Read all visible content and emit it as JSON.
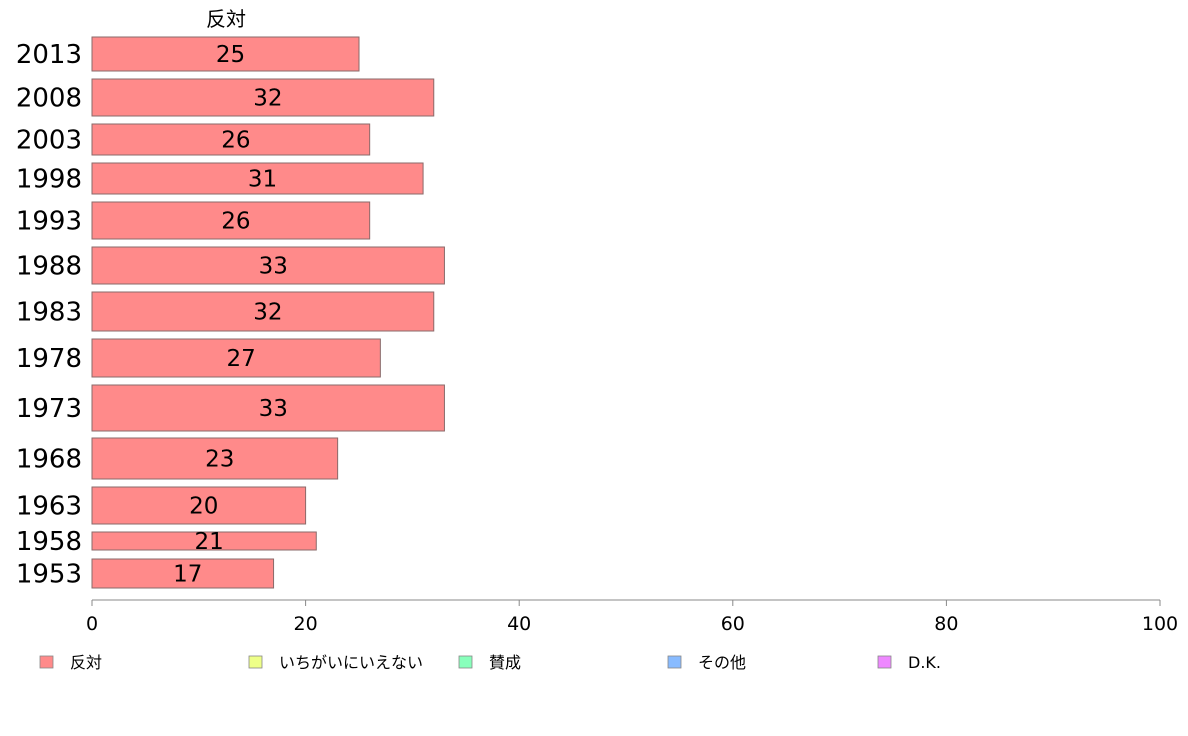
{
  "chart_data": {
    "type": "bar",
    "orientation": "horizontal",
    "series_title": "反対",
    "categories": [
      "2013",
      "2008",
      "2003",
      "1998",
      "1993",
      "1988",
      "1983",
      "1978",
      "1973",
      "1968",
      "1963",
      "1958",
      "1953"
    ],
    "series": [
      {
        "name": "反対",
        "color": "#ff8a8a",
        "values": [
          25,
          32,
          26,
          31,
          26,
          33,
          32,
          27,
          33,
          23,
          20,
          21,
          17
        ],
        "labels": [
          "25",
          "32",
          "26",
          "31",
          "26",
          "33",
          "32",
          "27",
          "33",
          "23",
          "20",
          "21",
          "17"
        ]
      }
    ],
    "xlim": [
      0,
      100
    ],
    "xticks": [
      "0",
      "20",
      "40",
      "60",
      "80",
      "100"
    ],
    "grid": false,
    "legend": {
      "placement": "bottom",
      "entries": [
        {
          "name": "反対",
          "color": "#ff8a8a"
        },
        {
          "name": "いちがいにいえない",
          "color": "#eeff88"
        },
        {
          "name": "賛成",
          "color": "#88ffbb"
        },
        {
          "name": "その他",
          "color": "#88bbff"
        },
        {
          "name": "D.K.",
          "color": "#ee88ff"
        }
      ]
    }
  }
}
